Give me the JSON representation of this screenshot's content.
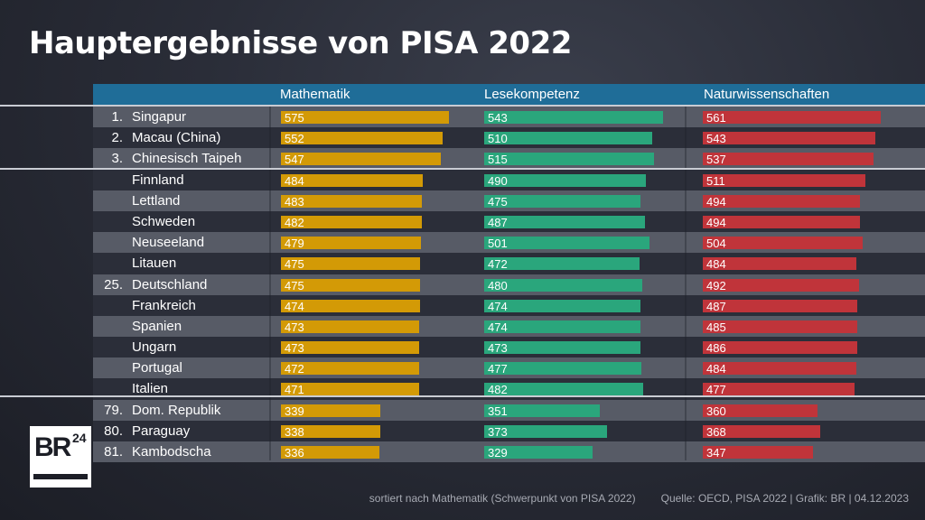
{
  "chart_data": {
    "type": "bar",
    "orientation": "horizontal",
    "title": "Hauptergebnisse von PISA 2022",
    "categories": [
      "Singapur",
      "Macau (China)",
      "Chinesisch Taipeh",
      "Finnland",
      "Lettland",
      "Schweden",
      "Neuseeland",
      "Litauen",
      "Deutschland",
      "Frankreich",
      "Spanien",
      "Ungarn",
      "Portugal",
      "Italien",
      "Dom. Republik",
      "Paraguay",
      "Kambodscha"
    ],
    "ranks": [
      "1.",
      "2.",
      "3.",
      "",
      "",
      "",
      "",
      "",
      "25.",
      "",
      "",
      "",
      "",
      "",
      "79.",
      "80.",
      "81."
    ],
    "series": [
      {
        "name": "Mathematik",
        "color": "#d39a06",
        "values": [
          575,
          552,
          547,
          484,
          483,
          482,
          479,
          475,
          475,
          474,
          473,
          473,
          472,
          471,
          339,
          338,
          336
        ]
      },
      {
        "name": "Lesekompetenz",
        "color": "#2aa67c",
        "values": [
          543,
          510,
          515,
          490,
          475,
          487,
          501,
          472,
          480,
          474,
          474,
          473,
          477,
          482,
          351,
          373,
          329
        ]
      },
      {
        "name": "Naturwissenschaften",
        "color": "#c0343a",
        "values": [
          561,
          543,
          537,
          511,
          494,
          494,
          504,
          484,
          492,
          487,
          485,
          486,
          484,
          477,
          360,
          368,
          347
        ]
      }
    ]
  },
  "footer": {
    "note": "sortiert nach Mathematik (Schwerpunkt von PISA 2022)",
    "source": "Quelle: OECD, PISA 2022 | Grafik: BR | 04.12.2023"
  },
  "logo": {
    "text": "BR24"
  }
}
